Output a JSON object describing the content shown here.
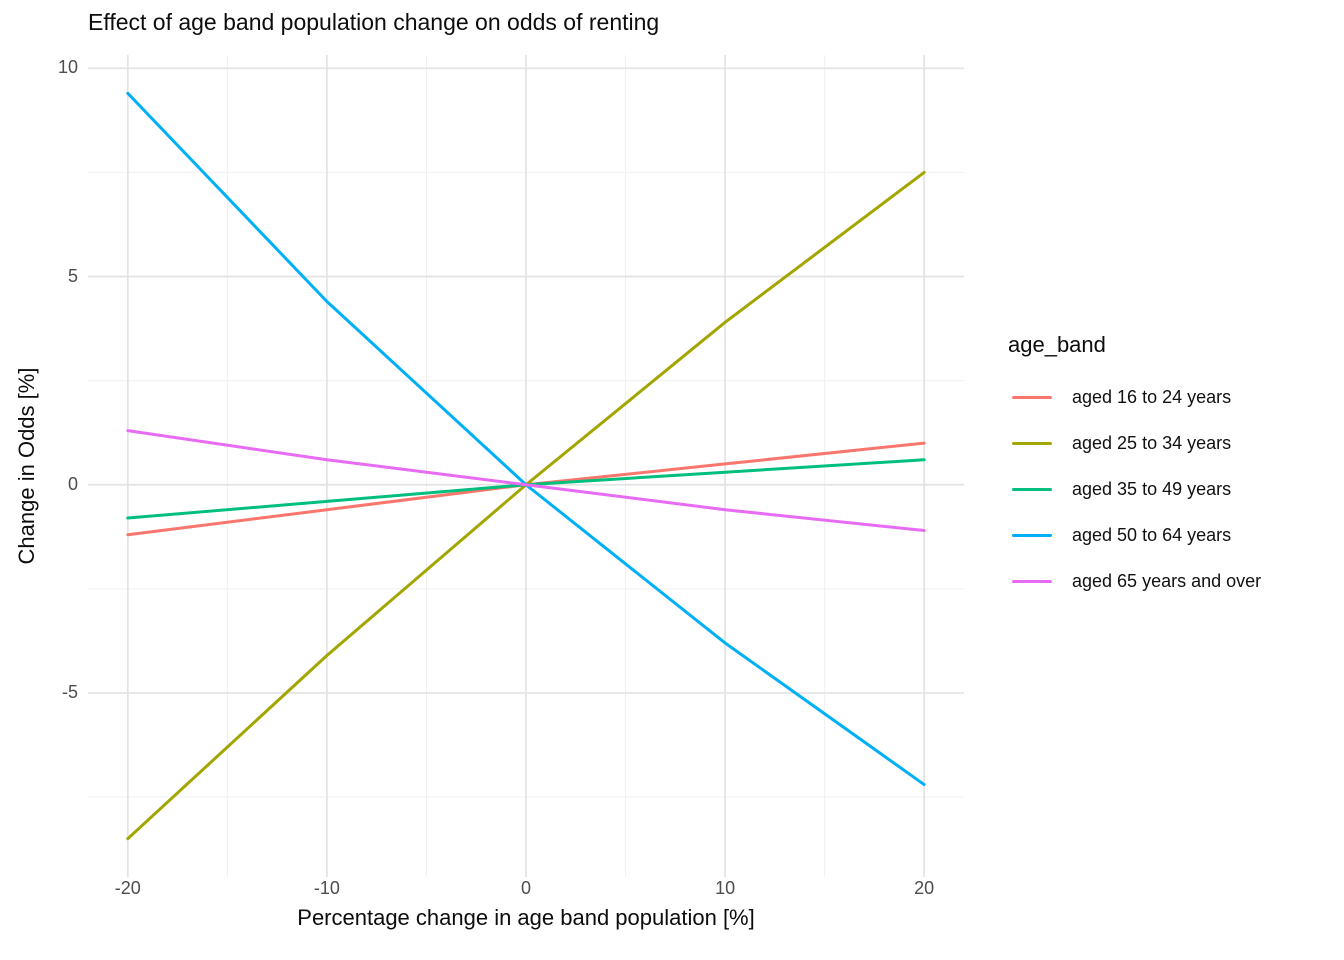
{
  "chart_data": {
    "type": "line",
    "title": "Effect of age band population change on odds of renting",
    "xlabel": "Percentage change in age band population [%]",
    "ylabel": "Change in Odds [%]",
    "x": [
      -20,
      -10,
      0,
      10,
      20
    ],
    "series": [
      {
        "name": "aged 16 to 24 years",
        "color": "#F8766D",
        "values": [
          -1.2,
          -0.6,
          0,
          0.5,
          1.0
        ]
      },
      {
        "name": "aged 25 to 34 years",
        "color": "#A3A500",
        "values": [
          -8.5,
          -4.1,
          0,
          3.9,
          7.5
        ]
      },
      {
        "name": "aged 35 to 49 years",
        "color": "#00BF7D",
        "values": [
          -0.8,
          -0.4,
          0,
          0.3,
          0.6
        ]
      },
      {
        "name": "aged 50 to 64 years",
        "color": "#00B0F6",
        "values": [
          9.4,
          4.4,
          0,
          -3.8,
          -7.2
        ]
      },
      {
        "name": "aged 65 years and over",
        "color": "#E76BF3",
        "values": [
          1.3,
          0.6,
          0,
          -0.6,
          -1.1
        ]
      }
    ],
    "legend_title": "age_band",
    "legend_position": "right",
    "x_ticks": [
      -20,
      -10,
      0,
      10,
      20
    ],
    "y_ticks": [
      10,
      5,
      0,
      -5
    ],
    "x_minor_ticks": [
      -15,
      -5,
      5,
      15
    ],
    "y_minor_ticks": [
      7.5,
      2.5,
      -2.5,
      -7.5
    ],
    "xlim": [
      -22,
      22
    ],
    "ylim": [
      -9.42,
      10.32
    ],
    "grid": "major and minor, no axis lines, no tick marks",
    "background": "#FFFFFF",
    "colors": {
      "grid_major": "#E3E3E3",
      "grid_minor": "#F0F0F0",
      "tick_label": "#4D4D4D",
      "text": "#0D0D0D"
    }
  }
}
